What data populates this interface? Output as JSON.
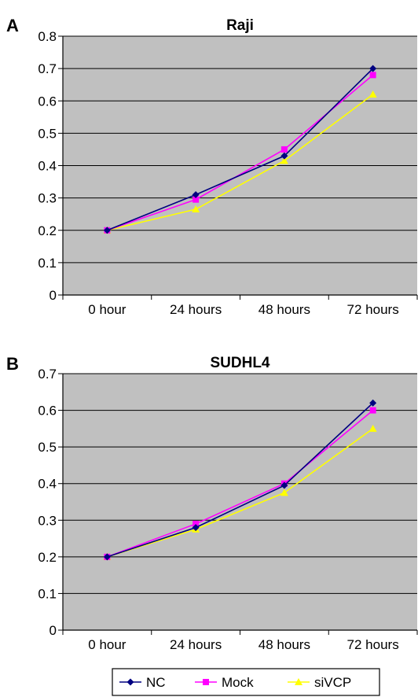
{
  "chart_data": [
    {
      "type": "line",
      "panel_label": "A",
      "title": "Raji",
      "categories": [
        "0 hour",
        "24 hours",
        "48 hours",
        "72 hours"
      ],
      "ylim": [
        0,
        0.8
      ],
      "yticks": [
        0,
        0.1,
        0.2,
        0.3,
        0.4,
        0.5,
        0.6,
        0.7,
        0.8
      ],
      "grid": "horizontal",
      "series": [
        {
          "name": "NC",
          "values": [
            0.2,
            0.31,
            0.43,
            0.7
          ]
        },
        {
          "name": "Mock",
          "values": [
            0.2,
            0.295,
            0.45,
            0.68
          ]
        },
        {
          "name": "siVCP",
          "values": [
            0.2,
            0.265,
            0.415,
            0.62
          ]
        }
      ]
    },
    {
      "type": "line",
      "panel_label": "B",
      "title": "SUDHL4",
      "categories": [
        "0 hour",
        "24 hours",
        "48 hours",
        "72 hours"
      ],
      "ylim": [
        0,
        0.7
      ],
      "yticks": [
        0,
        0.1,
        0.2,
        0.3,
        0.4,
        0.5,
        0.6,
        0.7
      ],
      "grid": "horizontal",
      "series": [
        {
          "name": "NC",
          "values": [
            0.2,
            0.28,
            0.395,
            0.62
          ]
        },
        {
          "name": "Mock",
          "values": [
            0.2,
            0.29,
            0.4,
            0.6
          ]
        },
        {
          "name": "siVCP",
          "values": [
            0.2,
            0.275,
            0.375,
            0.55
          ]
        }
      ]
    }
  ],
  "legend": {
    "placement": "bottom",
    "items": [
      {
        "name": "NC",
        "color": "#000080",
        "marker": "diamond"
      },
      {
        "name": "Mock",
        "color": "#ff00ff",
        "marker": "square"
      },
      {
        "name": "siVCP",
        "color": "#ffff00",
        "marker": "triangle"
      }
    ]
  },
  "colors": {
    "plot_background": "#c0c0c0",
    "gridline": "#000000",
    "NC": "#000080",
    "Mock": "#ff00ff",
    "siVCP": "#ffff00"
  }
}
